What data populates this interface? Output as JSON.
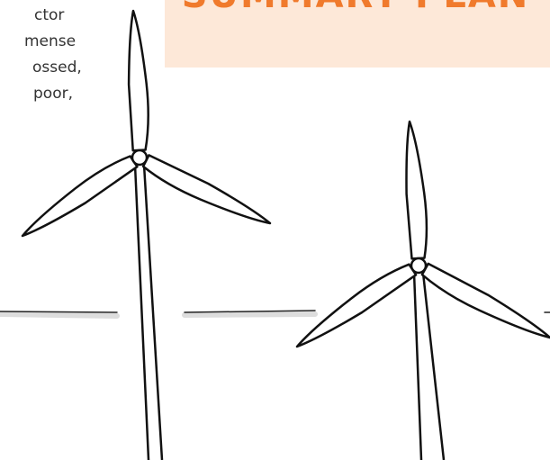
{
  "body_text": {
    "lines": [
      "ctor",
      "mense",
      "ossed,",
      "poor,"
    ]
  },
  "summary_box": {
    "title": "SUMMARY PLAN"
  }
}
